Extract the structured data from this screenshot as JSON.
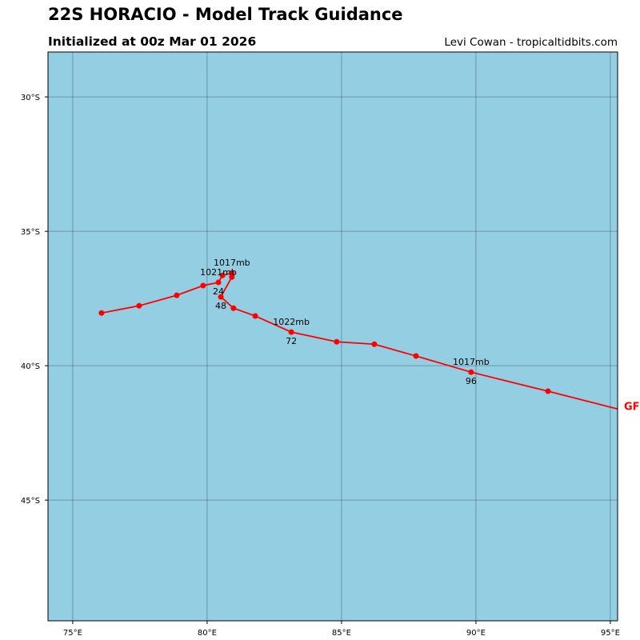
{
  "header": {
    "title": "22S HORACIO - Model Track Guidance",
    "subtitle": "Initialized at 00z Mar 01 2026",
    "credit": "Levi Cowan - tropicaltidbits.com"
  },
  "map": {
    "ocean_color": "#94cee3",
    "lon_range": [
      74.08,
      95.27
    ],
    "lat_range": [
      -49.49,
      -28.33
    ],
    "lon_ticks": [
      {
        "v": 75,
        "label": "75°E"
      },
      {
        "v": 80,
        "label": "80°E"
      },
      {
        "v": 85,
        "label": "85°E"
      },
      {
        "v": 90,
        "label": "90°E"
      },
      {
        "v": 95,
        "label": "95°E"
      }
    ],
    "lat_ticks": [
      {
        "v": -30,
        "label": "30°S"
      },
      {
        "v": -35,
        "label": "35°S"
      },
      {
        "v": -40,
        "label": "40°S"
      },
      {
        "v": -45,
        "label": "45°S"
      }
    ]
  },
  "tracks": [
    {
      "model": "GF",
      "color": "#ff0000",
      "points": [
        {
          "lon": 76.07,
          "lat": -38.04
        },
        {
          "lon": 77.47,
          "lat": -37.77
        },
        {
          "lon": 78.87,
          "lat": -37.38
        },
        {
          "lon": 79.85,
          "lat": -37.02
        },
        {
          "lon": 80.42,
          "lat": -36.9,
          "hour": "24",
          "pressure": "1021mb"
        },
        {
          "lon": 80.57,
          "lat": -36.64
        },
        {
          "lon": 80.92,
          "lat": -36.55,
          "pressure": "1017mb"
        },
        {
          "lon": 80.92,
          "lat": -36.7
        },
        {
          "lon": 80.51,
          "lat": -37.44,
          "hour": "48"
        },
        {
          "lon": 80.98,
          "lat": -37.86
        },
        {
          "lon": 81.79,
          "lat": -38.15
        },
        {
          "lon": 83.13,
          "lat": -38.75,
          "hour": "72",
          "pressure": "1022mb"
        },
        {
          "lon": 84.82,
          "lat": -39.11
        },
        {
          "lon": 86.22,
          "lat": -39.2
        },
        {
          "lon": 87.77,
          "lat": -39.64
        },
        {
          "lon": 89.82,
          "lat": -40.24,
          "hour": "96",
          "pressure": "1017mb"
        },
        {
          "lon": 92.68,
          "lat": -40.95
        },
        {
          "lon": 95.9,
          "lat": -41.77
        }
      ]
    }
  ]
}
